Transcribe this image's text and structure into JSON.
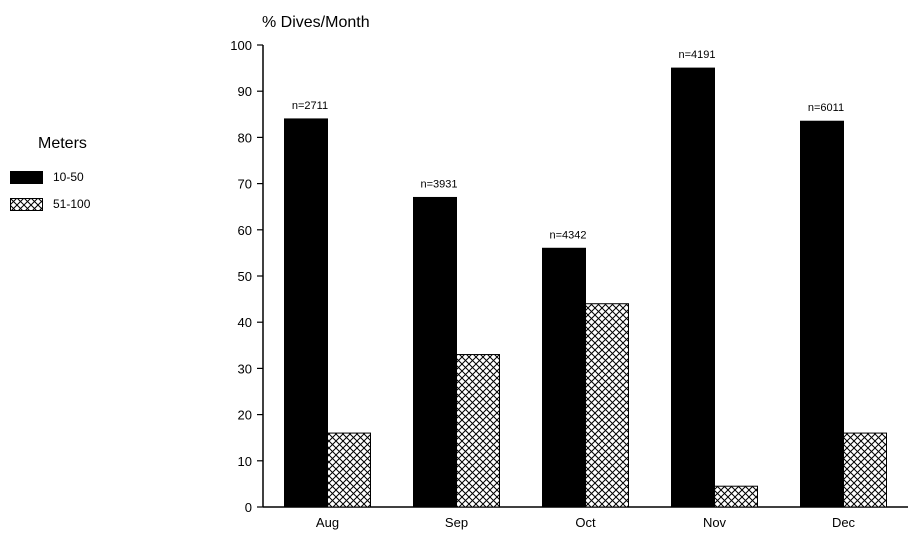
{
  "chart_data": {
    "type": "bar",
    "title": "% Dives/Month",
    "xlabel": "",
    "ylabel": "",
    "ylim": [
      0,
      100
    ],
    "yticks": [
      0,
      10,
      20,
      30,
      40,
      50,
      60,
      70,
      80,
      90,
      100
    ],
    "categories": [
      "Aug",
      "Sep",
      "Oct",
      "Nov",
      "Dec"
    ],
    "series": [
      {
        "name": "10-50",
        "values": [
          84,
          67,
          56,
          95,
          83.5
        ],
        "fill": "solid",
        "color": "#000000"
      },
      {
        "name": "51-100",
        "values": [
          16,
          33,
          44,
          4.5,
          16
        ],
        "fill": "crosshatch",
        "color": "#000000"
      }
    ],
    "annotations": [
      "n=2711",
      "n=3931",
      "n=4342",
      "n=4191",
      "n=6011"
    ],
    "grid": false,
    "legend": {
      "title": "Meters",
      "position": "left"
    }
  }
}
